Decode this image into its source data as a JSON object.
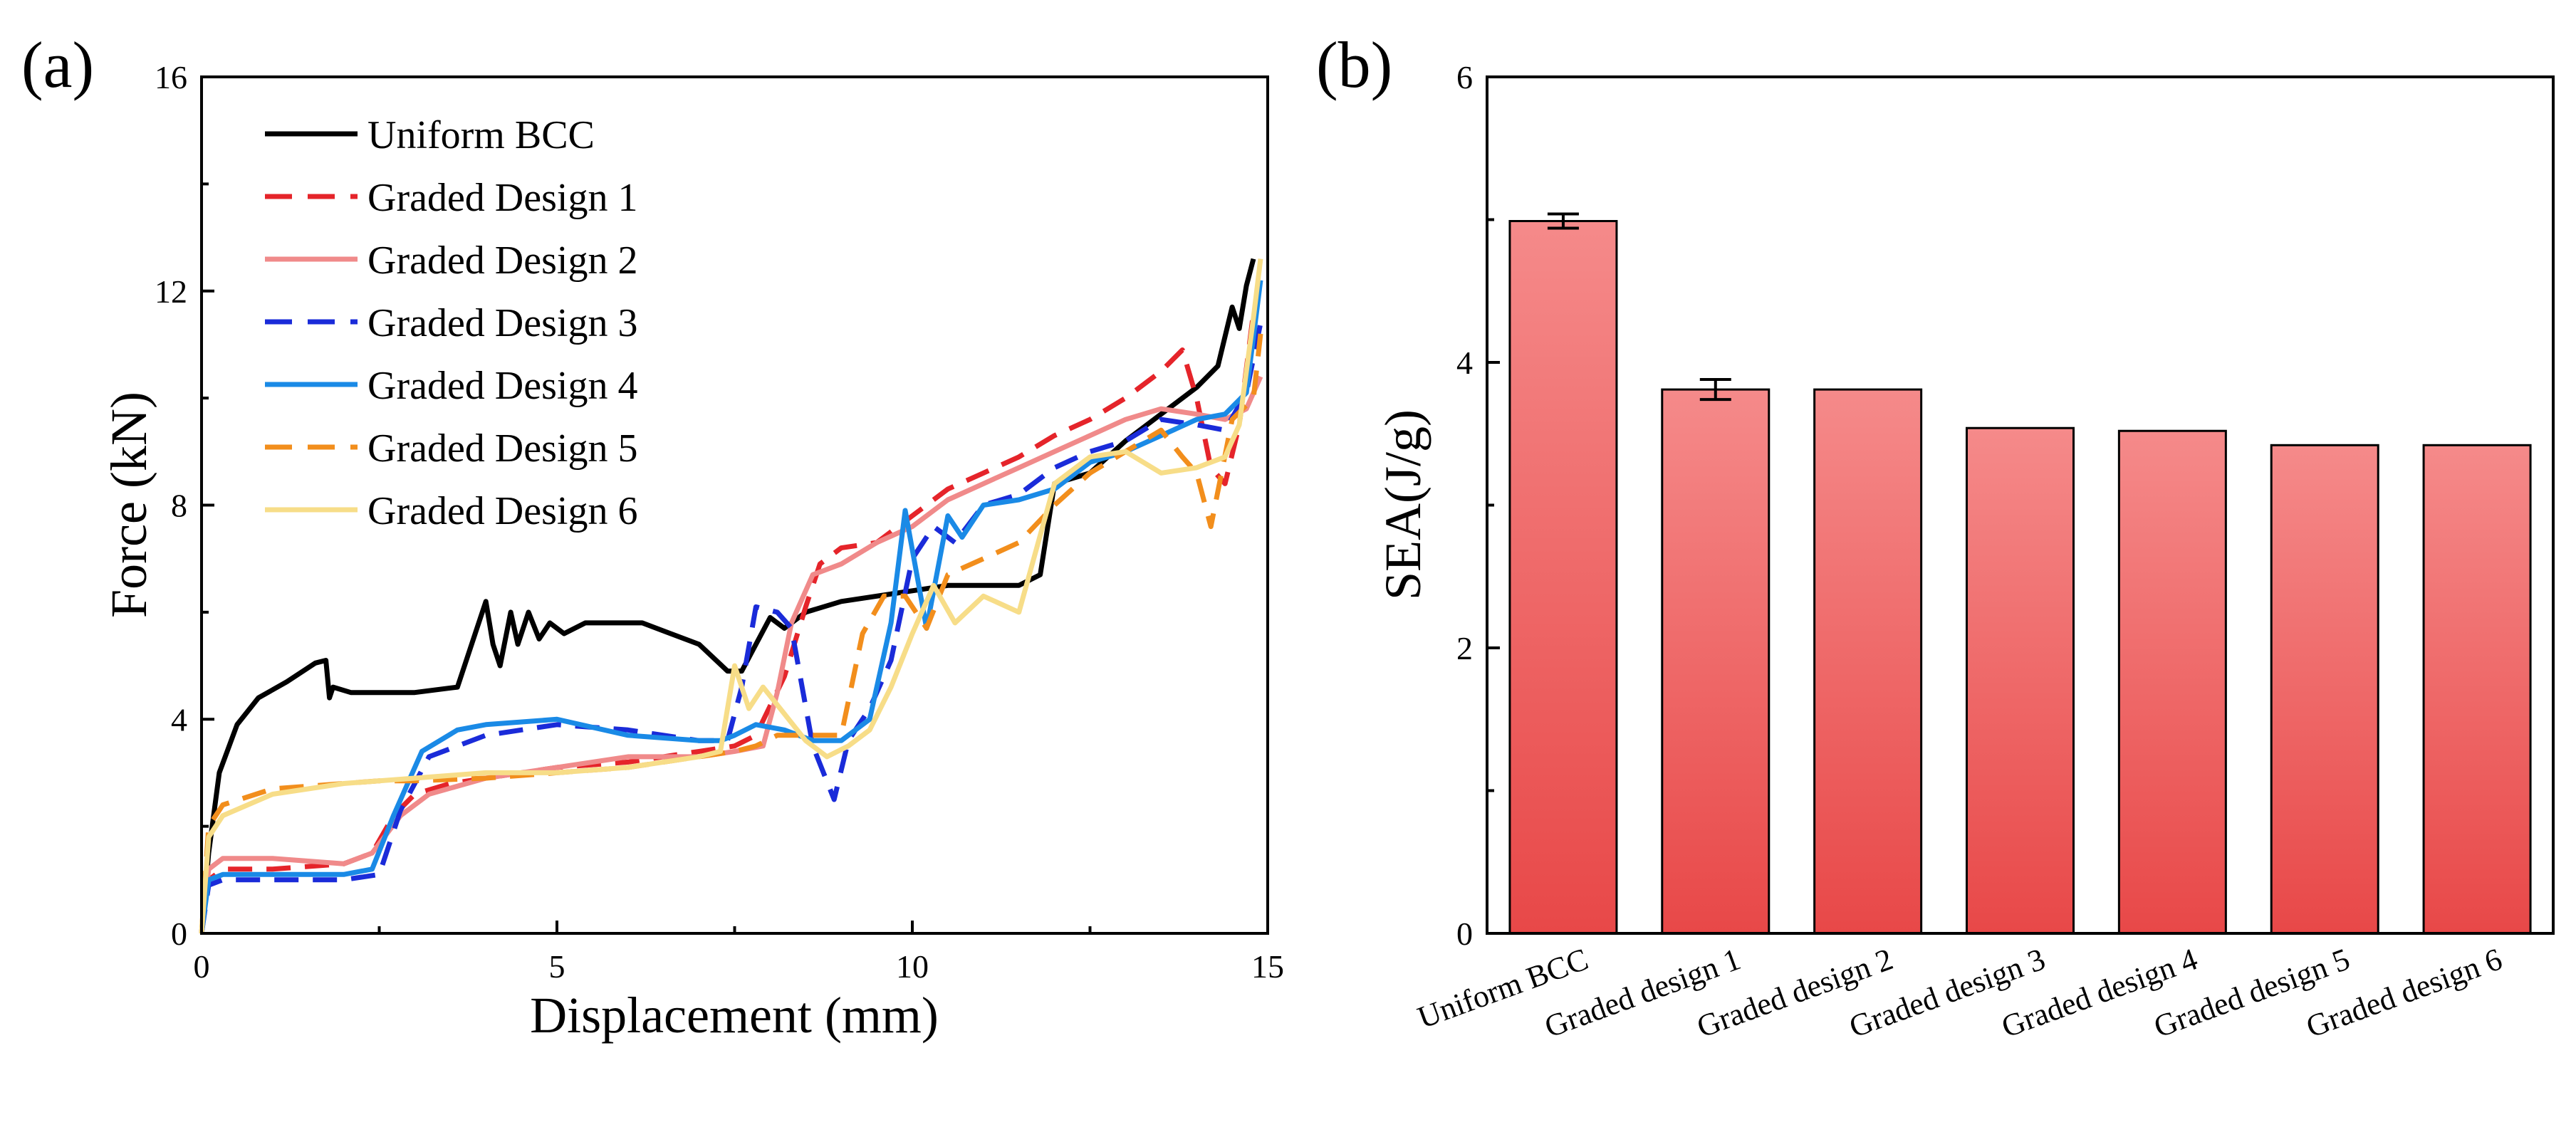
{
  "chart_data": [
    {
      "type": "line",
      "panel_label": "(a)",
      "xlabel": "Displacement (mm)",
      "ylabel": "Force (kN)",
      "xlim": [
        0,
        15
      ],
      "ylim": [
        0,
        16
      ],
      "xticks": [
        0,
        5,
        10,
        15
      ],
      "yticks": [
        0,
        4,
        8,
        12,
        16
      ],
      "grid": false,
      "legend_position": "top-left",
      "series": [
        {
          "name": "Uniform BCC",
          "color": "#000000",
          "dash": "solid",
          "x": [
            0,
            0.1,
            0.25,
            0.5,
            0.8,
            1.2,
            1.6,
            1.75,
            1.8,
            1.85,
            2.1,
            2.5,
            3.0,
            3.6,
            3.85,
            4.0,
            4.1,
            4.2,
            4.35,
            4.45,
            4.6,
            4.75,
            4.9,
            5.1,
            5.4,
            5.7,
            6.2,
            6.6,
            7.0,
            7.4,
            7.6,
            7.8,
            8.0,
            8.2,
            8.5,
            9.0,
            10.0,
            10.5,
            11.0,
            11.5,
            11.8,
            12.0,
            12.5,
            13.0,
            13.5,
            14.0,
            14.3,
            14.5,
            14.6,
            14.7,
            14.8
          ],
          "y": [
            0,
            1.5,
            3.0,
            3.9,
            4.4,
            4.7,
            5.05,
            5.1,
            4.4,
            4.6,
            4.5,
            4.5,
            4.5,
            4.6,
            5.6,
            6.2,
            5.4,
            5.0,
            6.0,
            5.4,
            6.0,
            5.5,
            5.8,
            5.6,
            5.8,
            5.8,
            5.8,
            5.6,
            5.4,
            4.9,
            4.9,
            5.4,
            5.9,
            5.7,
            6.0,
            6.2,
            6.4,
            6.5,
            6.5,
            6.5,
            6.7,
            8.4,
            8.6,
            9.2,
            9.7,
            10.2,
            10.6,
            11.7,
            11.3,
            12.1,
            12.6
          ]
        },
        {
          "name": "Graded Design 1",
          "color": "#e5242a",
          "dash": "dashed",
          "x": [
            0,
            0.1,
            0.3,
            1.0,
            2.0,
            2.4,
            2.7,
            3.0,
            3.5,
            4.0,
            5.0,
            6.0,
            7.0,
            7.5,
            7.8,
            8.2,
            8.5,
            8.7,
            9.0,
            9.5,
            10.0,
            10.5,
            11.0,
            11.5,
            12.0,
            12.5,
            13.0,
            13.5,
            13.8,
            14.0,
            14.2,
            14.4,
            14.6,
            14.8
          ],
          "y": [
            0,
            1.0,
            1.2,
            1.2,
            1.3,
            1.5,
            2.2,
            2.6,
            2.8,
            2.9,
            3.1,
            3.2,
            3.4,
            3.5,
            3.7,
            4.8,
            6.1,
            6.9,
            7.2,
            7.3,
            7.8,
            8.3,
            8.6,
            8.9,
            9.3,
            9.6,
            10.0,
            10.5,
            10.9,
            10.0,
            8.7,
            8.4,
            9.5,
            11.6
          ]
        },
        {
          "name": "Graded Design 2",
          "color": "#f08a8a",
          "dash": "solid",
          "x": [
            0,
            0.1,
            0.3,
            1.0,
            2.0,
            2.4,
            2.8,
            3.2,
            4.0,
            5.0,
            6.0,
            7.0,
            7.5,
            7.9,
            8.1,
            8.3,
            8.6,
            9.0,
            9.5,
            10.0,
            10.5,
            11.0,
            11.5,
            12.0,
            12.5,
            13.0,
            13.5,
            14.0,
            14.4,
            14.7,
            14.9
          ],
          "y": [
            0,
            1.2,
            1.4,
            1.4,
            1.3,
            1.5,
            2.2,
            2.6,
            2.9,
            3.1,
            3.3,
            3.3,
            3.4,
            3.5,
            4.5,
            5.8,
            6.7,
            6.9,
            7.3,
            7.6,
            8.1,
            8.4,
            8.7,
            9.0,
            9.3,
            9.6,
            9.8,
            9.7,
            9.6,
            9.8,
            10.4
          ]
        },
        {
          "name": "Graded Design 3",
          "color": "#1a2bd9",
          "dash": "dashed",
          "x": [
            0,
            0.1,
            0.3,
            1.0,
            2.0,
            2.5,
            2.8,
            3.2,
            4.0,
            5.0,
            6.0,
            7.0,
            7.4,
            7.6,
            7.8,
            8.1,
            8.3,
            8.6,
            8.9,
            9.1,
            9.4,
            9.7,
            10.0,
            10.3,
            10.6,
            11.0,
            11.5,
            12.0,
            12.5,
            13.0,
            13.5,
            14.0,
            14.4,
            14.7,
            14.9
          ],
          "y": [
            0,
            0.9,
            1.0,
            1.0,
            1.0,
            1.1,
            2.3,
            3.3,
            3.7,
            3.9,
            3.8,
            3.6,
            3.6,
            4.6,
            6.1,
            6.0,
            5.7,
            3.5,
            2.5,
            3.6,
            4.2,
            5.1,
            7.0,
            7.6,
            7.3,
            8.0,
            8.2,
            8.7,
            9.0,
            9.2,
            9.6,
            9.5,
            9.4,
            10.1,
            11.4
          ]
        },
        {
          "name": "Graded Design 4",
          "color": "#1a8ae6",
          "dash": "solid",
          "x": [
            0,
            0.1,
            0.3,
            1.0,
            2.0,
            2.4,
            2.7,
            3.1,
            3.6,
            4.0,
            5.0,
            6.0,
            7.0,
            7.3,
            7.5,
            7.8,
            8.2,
            8.6,
            9.0,
            9.4,
            9.7,
            9.9,
            10.2,
            10.5,
            10.7,
            11.0,
            11.5,
            12.0,
            12.5,
            13.0,
            13.5,
            14.0,
            14.4,
            14.7,
            14.9
          ],
          "y": [
            0,
            1.0,
            1.1,
            1.1,
            1.1,
            1.2,
            2.2,
            3.4,
            3.8,
            3.9,
            4.0,
            3.7,
            3.6,
            3.6,
            3.7,
            3.9,
            3.8,
            3.6,
            3.6,
            4.0,
            5.8,
            7.9,
            5.7,
            7.8,
            7.4,
            8.0,
            8.1,
            8.3,
            8.8,
            9.0,
            9.3,
            9.6,
            9.7,
            10.1,
            12.2
          ]
        },
        {
          "name": "Graded Design 5",
          "color": "#f28e1c",
          "dash": "dashed",
          "x": [
            0,
            0.1,
            0.3,
            1.0,
            2.0,
            2.5,
            3.0,
            4.0,
            5.0,
            6.0,
            7.0,
            7.5,
            7.8,
            8.1,
            8.5,
            9.0,
            9.3,
            9.6,
            9.9,
            10.2,
            10.5,
            11.0,
            11.5,
            12.0,
            12.5,
            13.0,
            13.5,
            13.8,
            14.0,
            14.2,
            14.5,
            14.8,
            14.9
          ],
          "y": [
            0,
            2.0,
            2.4,
            2.7,
            2.8,
            2.85,
            2.85,
            2.9,
            3.0,
            3.1,
            3.3,
            3.4,
            3.5,
            3.7,
            3.7,
            3.7,
            5.6,
            6.3,
            6.3,
            5.7,
            6.7,
            7.0,
            7.3,
            8.0,
            8.6,
            9.0,
            9.4,
            8.9,
            8.6,
            7.6,
            9.6,
            10.0,
            11.2
          ]
        },
        {
          "name": "Graded Design 6",
          "color": "#f7dd88",
          "dash": "solid",
          "x": [
            0,
            0.1,
            0.3,
            1.0,
            2.0,
            3.0,
            4.0,
            5.0,
            6.0,
            7.0,
            7.3,
            7.5,
            7.7,
            7.9,
            8.2,
            8.5,
            8.8,
            9.1,
            9.4,
            9.7,
            10.0,
            10.3,
            10.6,
            11.0,
            11.5,
            12.0,
            12.5,
            13.0,
            13.5,
            14.0,
            14.4,
            14.6,
            14.8,
            14.9
          ],
          "y": [
            0,
            1.8,
            2.2,
            2.6,
            2.8,
            2.9,
            3.0,
            3.0,
            3.1,
            3.3,
            3.4,
            5.0,
            4.2,
            4.6,
            4.1,
            3.6,
            3.3,
            3.5,
            3.8,
            4.6,
            5.6,
            6.5,
            5.8,
            6.3,
            6.0,
            8.4,
            8.9,
            9.0,
            8.6,
            8.7,
            8.9,
            9.5,
            11.5,
            12.6
          ]
        }
      ]
    },
    {
      "type": "bar",
      "panel_label": "(b)",
      "xlabel": "",
      "ylabel": "SEA(J/g)",
      "ylim": [
        0,
        6
      ],
      "yticks": [
        0,
        2,
        4,
        6
      ],
      "grid": false,
      "categories": [
        "Uniform BCC",
        "Graded design 1",
        "Graded design 2",
        "Graded design 3",
        "Graded design 4",
        "Graded design 5",
        "Graded design 6"
      ],
      "values": [
        4.99,
        3.81,
        3.81,
        3.54,
        3.52,
        3.42,
        3.42
      ],
      "errors": [
        0.05,
        0.07,
        0,
        0,
        0,
        0,
        0
      ],
      "bar_color_top": "#f58a8a",
      "bar_color_bottom": "#e84848"
    }
  ]
}
